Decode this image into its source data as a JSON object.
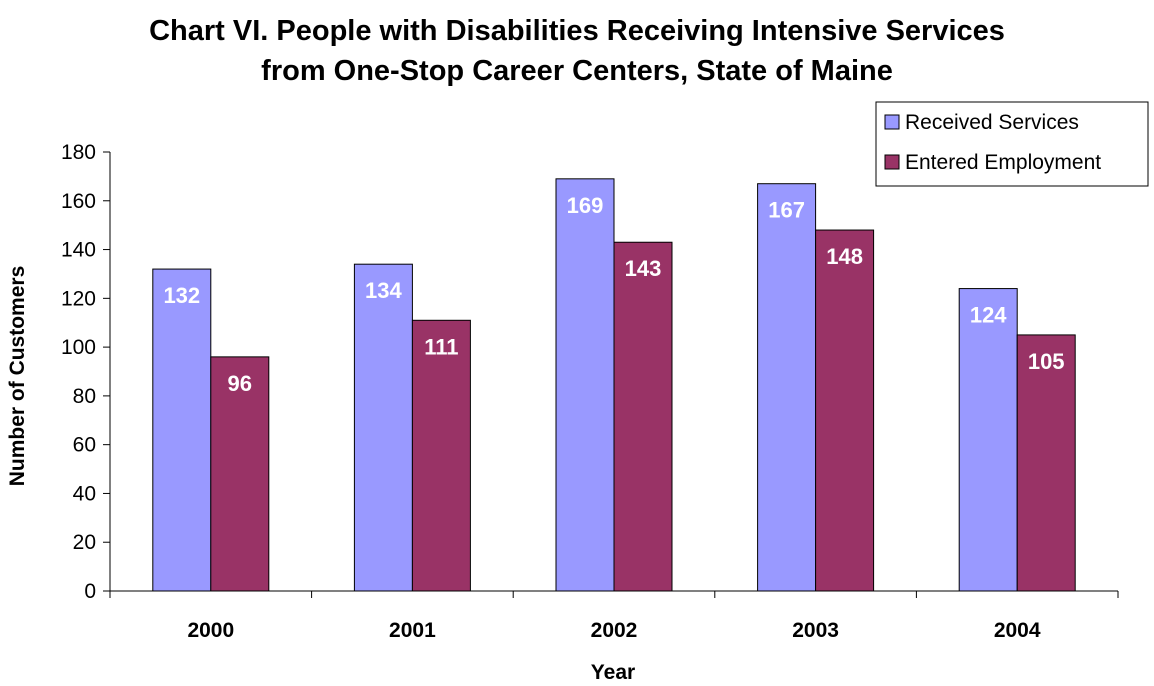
{
  "chart_data": {
    "type": "bar",
    "title": [
      "Chart VI. People with Disabilities Receiving Intensive Services",
      "from One-Stop Career Centers, State of Maine"
    ],
    "xlabel": "Year",
    "ylabel": "Number of Customers",
    "categories": [
      "2000",
      "2001",
      "2002",
      "2003",
      "2004"
    ],
    "series": [
      {
        "name": "Received Services",
        "color": "#9999FF",
        "values": [
          132,
          134,
          169,
          167,
          124
        ]
      },
      {
        "name": "Entered Employment",
        "color": "#993366",
        "values": [
          96,
          111,
          143,
          148,
          105
        ]
      }
    ],
    "ylim": [
      0,
      180
    ],
    "yticks": [
      0,
      20,
      40,
      60,
      80,
      100,
      120,
      140,
      160,
      180
    ],
    "grid": false,
    "legend_position": "top-right",
    "data_labels": true
  }
}
